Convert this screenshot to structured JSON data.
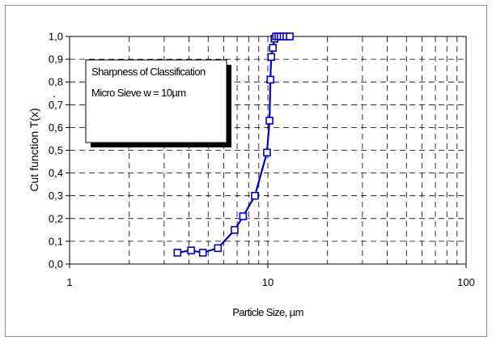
{
  "chart_data": {
    "type": "line",
    "xscale": "log",
    "xlim": [
      1,
      100
    ],
    "ylim": [
      0.0,
      1.0
    ],
    "xticks": [
      1,
      10,
      100
    ],
    "xtick_labels": [
      "1",
      "10",
      "100"
    ],
    "yticks": [
      0.0,
      0.1,
      0.2,
      0.3,
      0.4,
      0.5,
      0.6,
      0.7,
      0.8,
      0.9,
      1.0
    ],
    "ytick_labels": [
      "0,0",
      "0,1",
      "0,2",
      "0,3",
      "0,4",
      "0,5",
      "0,6",
      "0,7",
      "0,8",
      "0,9",
      "1,0"
    ],
    "xlabel": "Particle Size, µm",
    "ylabel": "Cut function T(x)",
    "ylabel_suffix": ".",
    "grid": true,
    "annotation": {
      "lines": [
        "Sharpness of Classification",
        "Micro Sieve w = 10µm"
      ],
      "placement": "top-left"
    },
    "series": [
      {
        "color": "#0000cc",
        "marker": "square",
        "x": [
          3.5,
          4.1,
          4.7,
          5.6,
          6.8,
          7.5,
          8.6,
          9.9,
          10.2,
          10.3,
          10.4,
          10.6,
          10.8,
          11.0,
          11.3,
          11.6,
          12.0,
          12.4,
          12.9
        ],
        "y": [
          0.05,
          0.06,
          0.05,
          0.07,
          0.15,
          0.21,
          0.3,
          0.49,
          0.63,
          0.81,
          0.91,
          0.95,
          0.99,
          1.0,
          1.0,
          1.0,
          1.0,
          1.0,
          1.0
        ]
      }
    ]
  }
}
